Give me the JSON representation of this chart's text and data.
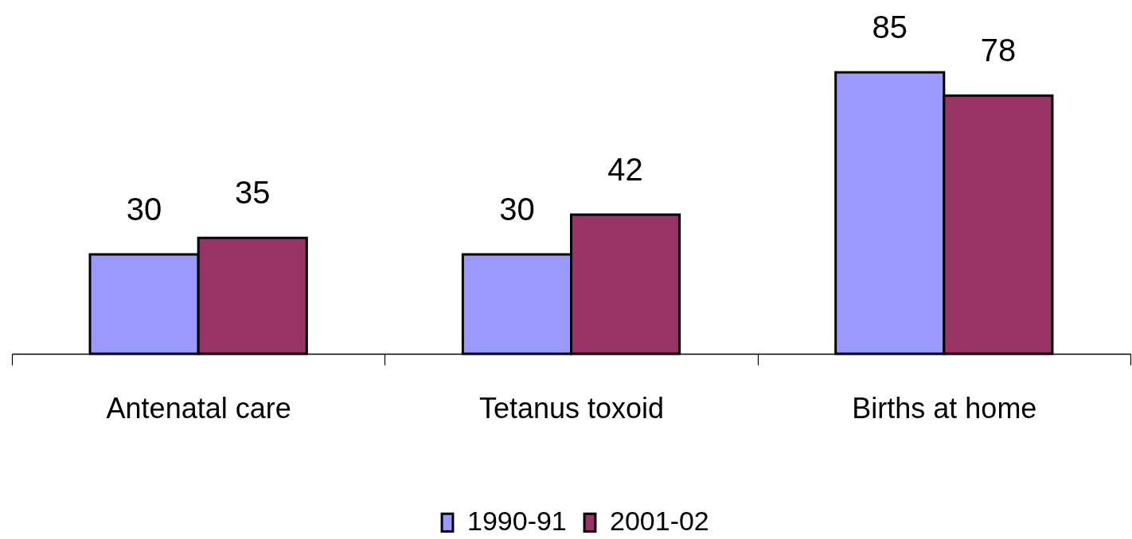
{
  "chart_data": {
    "type": "bar",
    "categories": [
      "Antenatal care",
      "Tetanus toxoid",
      "Births at home"
    ],
    "series": [
      {
        "name": "1990-91",
        "color": "#9999ff",
        "values": [
          30,
          30,
          85
        ]
      },
      {
        "name": "2001-02",
        "color": "#993366",
        "values": [
          35,
          42,
          78
        ]
      }
    ],
    "data_labels": true,
    "legend": "bottom"
  }
}
